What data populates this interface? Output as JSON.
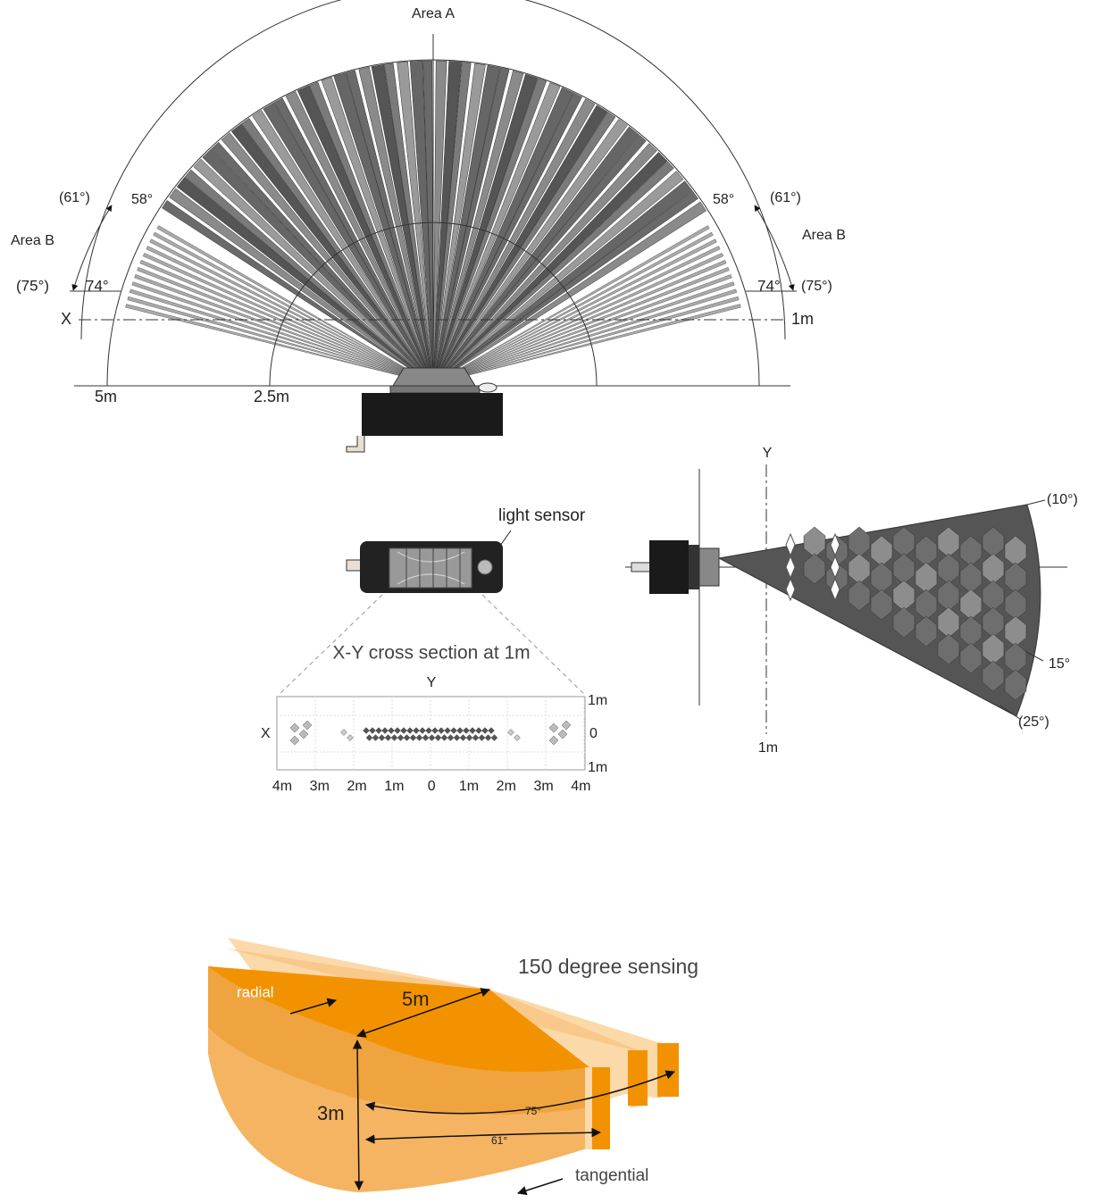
{
  "top_view": {
    "area_a": "Area A",
    "left": {
      "area": "Area B",
      "outer_angle_1": "(61°)",
      "inner_angle_1": "58°",
      "outer_angle_2": "(75°)",
      "inner_angle_2": "74°"
    },
    "right": {
      "area": "Area B",
      "outer_angle_1": "(61°)",
      "inner_angle_1": "58°",
      "outer_angle_2": "(75°)",
      "inner_angle_2": "74°"
    },
    "x_axis": "X",
    "x_label_right": "1m",
    "radius_labels": [
      "5m",
      "2.5m"
    ]
  },
  "front_view": {
    "light_sensor": "light sensor",
    "cross_section": {
      "title": "X-Y cross section at 1m",
      "y_axis": "Y",
      "y_labels": [
        "1m",
        "0",
        "1m"
      ],
      "x_axis": "X",
      "x_labels": [
        "4m",
        "3m",
        "2m",
        "1m",
        "0",
        "1m",
        "2m",
        "3m",
        "4m"
      ]
    }
  },
  "side_view": {
    "y_axis": "Y",
    "angles": [
      "(10°)",
      "15°",
      "(25°)"
    ],
    "distance": "1m"
  },
  "volume_view": {
    "title": "150 degree sensing",
    "radial": "radial",
    "radius": "5m",
    "height": "3m",
    "angle_outer": "75°",
    "angle_inner": "61°",
    "tangential": "tangential"
  }
}
